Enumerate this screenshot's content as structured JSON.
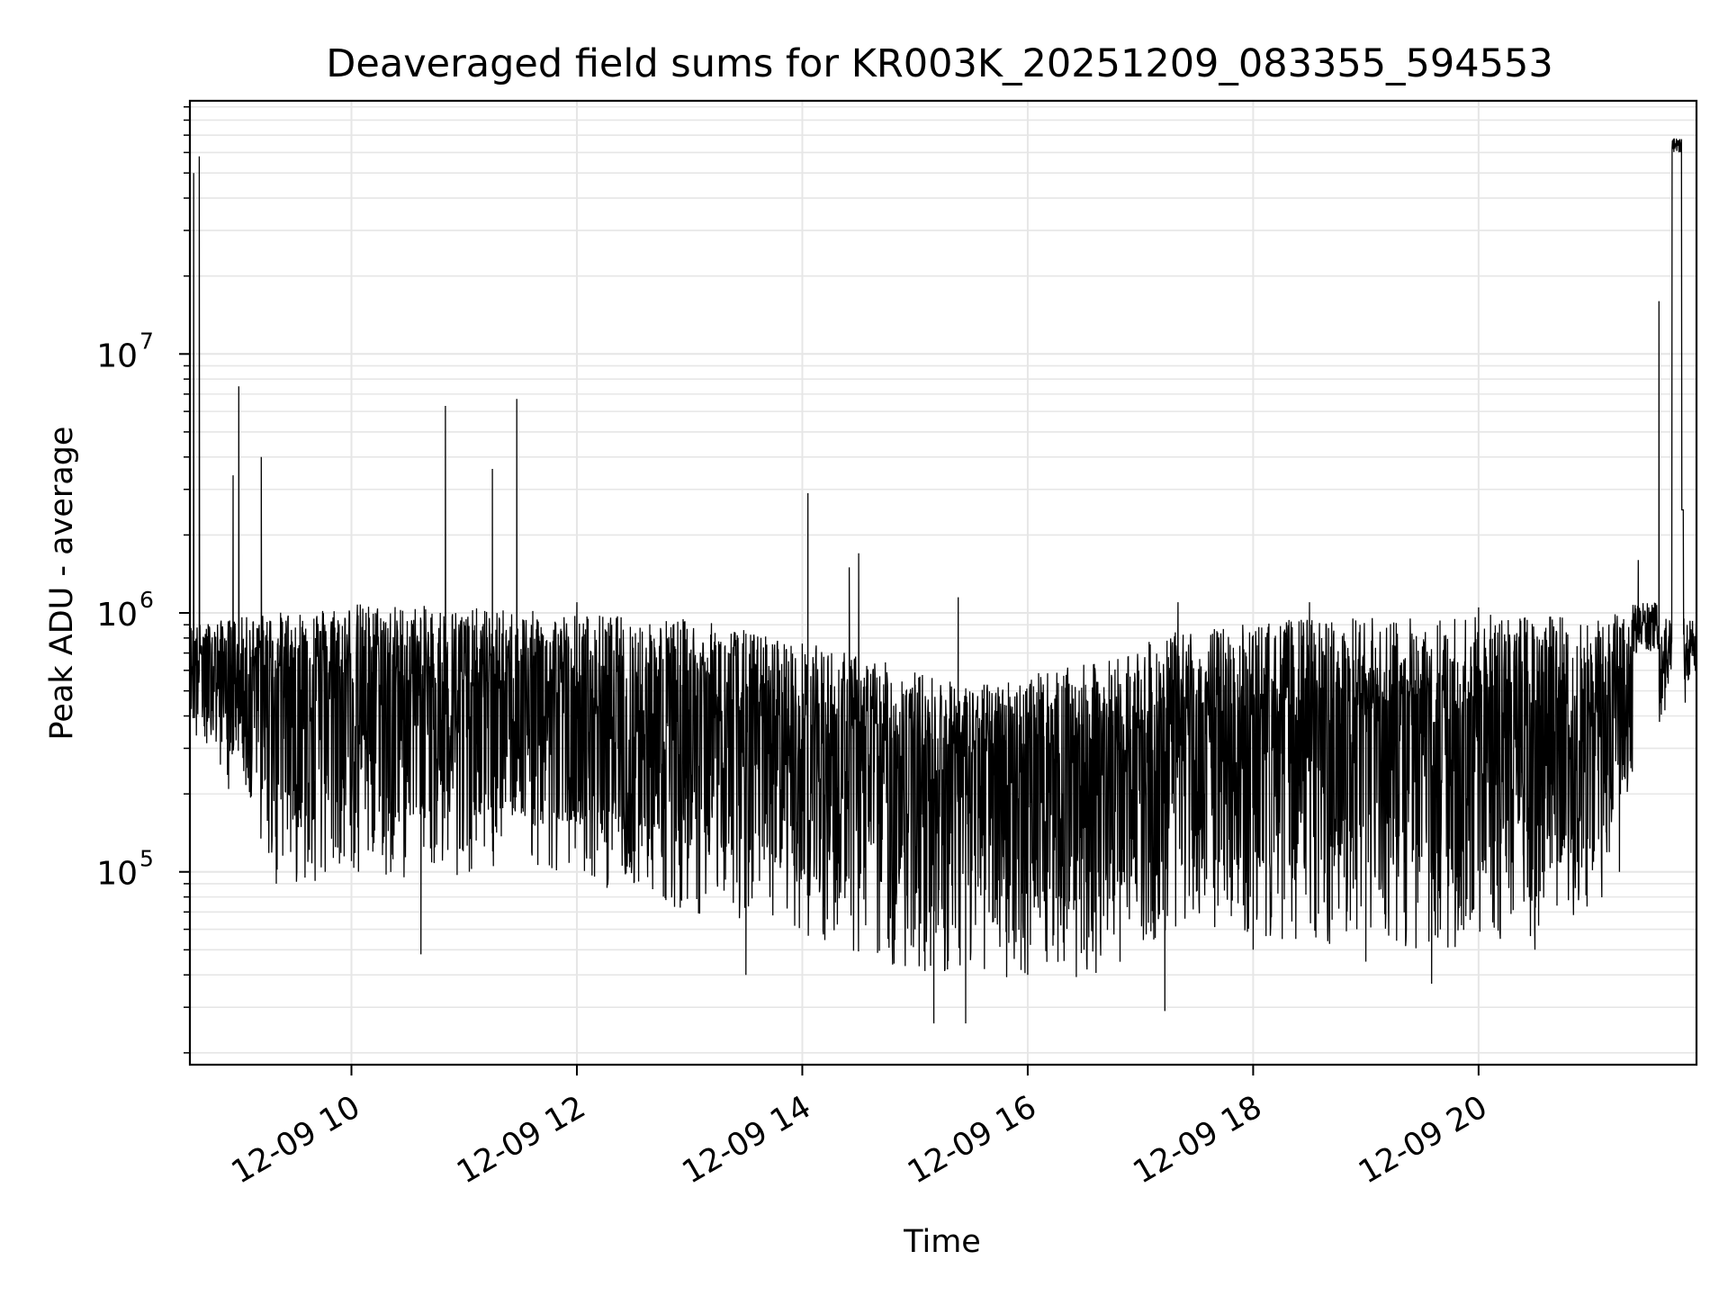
{
  "chart_data": {
    "type": "line",
    "title": "Deaveraged field sums for KR003K_20251209_083355_594553",
    "xlabel": "Time",
    "ylabel": "Peak ADU - average",
    "x_range": [
      "12-09 08:34",
      "12-09 21:56"
    ],
    "ylim": [
      18000,
      95000000
    ],
    "yscale": "log",
    "grid": true,
    "x_ticks": [
      "12-09 10",
      "12-09 12",
      "12-09 14",
      "12-09 16",
      "12-09 18",
      "12-09 20"
    ],
    "y_ticks": [
      {
        "base": "10",
        "exp": "5",
        "value": 100000
      },
      {
        "base": "10",
        "exp": "6",
        "value": 1000000
      },
      {
        "base": "10",
        "exp": "7",
        "value": 10000000
      }
    ],
    "series": [
      {
        "color": "#000000",
        "sampling_note": "noisy dense trace; values listed are approximate envelope/key points",
        "points": [
          [
            "12-09 08:34",
            1300000
          ],
          [
            "12-09 08:36",
            50000000
          ],
          [
            "12-09 08:39",
            58000000
          ],
          [
            "12-09 08:41",
            700000
          ],
          [
            "12-09 08:50",
            450000
          ],
          [
            "12-09 08:57",
            3400000
          ],
          [
            "12-09 09:00",
            7500000
          ],
          [
            "12-09 09:03",
            500000
          ],
          [
            "12-09 09:12",
            4000000
          ],
          [
            "12-09 09:20",
            90000
          ],
          [
            "12-09 09:40",
            950000
          ],
          [
            "12-09 10:00",
            110000
          ],
          [
            "12-09 10:37",
            48000
          ],
          [
            "12-09 10:50",
            6300000
          ],
          [
            "12-09 11:15",
            3600000
          ],
          [
            "12-09 11:28",
            6700000
          ],
          [
            "12-09 12:00",
            1100000
          ],
          [
            "12-09 12:30",
            120000
          ],
          [
            "12-09 13:00",
            700000
          ],
          [
            "12-09 13:30",
            40000
          ],
          [
            "12-09 14:03",
            2900000
          ],
          [
            "12-09 14:25",
            1500000
          ],
          [
            "12-09 14:30",
            1700000
          ],
          [
            "12-09 15:00",
            60000
          ],
          [
            "12-09 15:10",
            26000
          ],
          [
            "12-09 15:23",
            1150000
          ],
          [
            "12-09 15:27",
            26000
          ],
          [
            "12-09 16:00",
            40000
          ],
          [
            "12-09 16:30",
            50000
          ],
          [
            "12-09 17:13",
            29000
          ],
          [
            "12-09 17:20",
            1100000
          ],
          [
            "12-09 18:00",
            50000
          ],
          [
            "12-09 18:30",
            1100000
          ],
          [
            "12-09 19:00",
            45000
          ],
          [
            "12-09 19:35",
            37000
          ],
          [
            "12-09 20:00",
            1050000
          ],
          [
            "12-09 20:30",
            50000
          ],
          [
            "12-09 21:15",
            100000
          ],
          [
            "12-09 21:25",
            1600000
          ],
          [
            "12-09 21:36",
            16000000
          ],
          [
            "12-09 21:44",
            68000000
          ],
          [
            "12-09 21:50",
            450000
          ],
          [
            "12-09 21:56",
            900000
          ]
        ]
      }
    ]
  }
}
